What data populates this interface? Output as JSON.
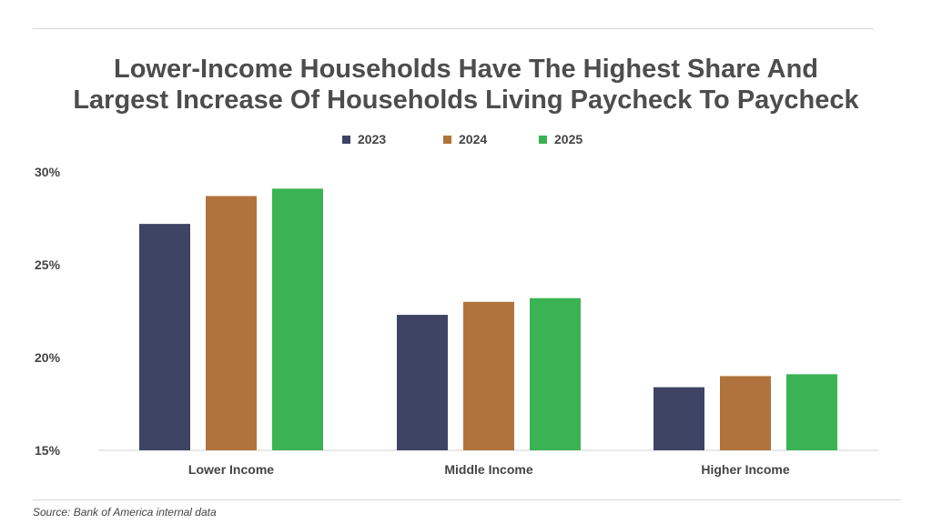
{
  "chart_data": {
    "type": "bar",
    "title_lines": [
      "Lower-Income Households Have The Highest Share And",
      "Largest Increase Of Households Living Paycheck To Paycheck"
    ],
    "categories": [
      "Lower Income",
      "Middle Income",
      "Higher Income"
    ],
    "series": [
      {
        "name": "2023",
        "color": "#3d4464",
        "values": [
          27.2,
          22.3,
          18.4
        ]
      },
      {
        "name": "2024",
        "color": "#b0733c",
        "values": [
          28.7,
          23.0,
          19.0
        ]
      },
      {
        "name": "2025",
        "color": "#3ab355",
        "values": [
          29.1,
          23.2,
          19.1
        ]
      }
    ],
    "ylim": [
      15,
      30
    ],
    "yticks": [
      15,
      20,
      25,
      30
    ],
    "ytick_labels": [
      "15%",
      "20%",
      "25%",
      "30%"
    ],
    "legend_position": "top-center",
    "grid": false,
    "source": "Source: Bank of America internal data"
  }
}
